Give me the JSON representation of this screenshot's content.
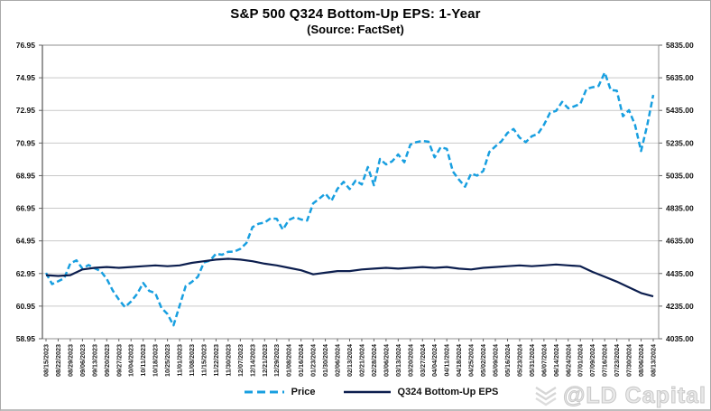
{
  "watermark": {
    "text": "@LD Capital"
  },
  "chart_data": {
    "type": "line",
    "title": "S&P 500 Q324 Bottom-Up EPS: 1-Year",
    "subtitle": "(Source: FactSet)",
    "grid": true,
    "legend_position": "bottom",
    "x_labels": [
      "08/15/2023",
      "08/22/2023",
      "08/29/2023",
      "09/06/2023",
      "09/13/2023",
      "09/20/2023",
      "09/27/2023",
      "10/04/2023",
      "10/11/2023",
      "10/18/2023",
      "10/25/2023",
      "11/01/2023",
      "11/08/2023",
      "11/15/2023",
      "11/22/2023",
      "11/30/2023",
      "12/07/2023",
      "12/14/2023",
      "12/21/2023",
      "12/29/2023",
      "01/08/2024",
      "01/16/2024",
      "01/23/2024",
      "01/30/2024",
      "02/06/2024",
      "02/13/2024",
      "02/21/2024",
      "02/28/2024",
      "03/06/2024",
      "03/13/2024",
      "03/20/2024",
      "03/27/2024",
      "04/04/2024",
      "04/11/2024",
      "04/18/2024",
      "04/25/2024",
      "05/02/2024",
      "05/09/2024",
      "05/16/2024",
      "05/23/2024",
      "05/31/2024",
      "06/07/2024",
      "06/14/2024",
      "06/24/2024",
      "07/01/2024",
      "07/09/2024",
      "07/16/2024",
      "07/23/2024",
      "07/30/2024",
      "08/06/2024",
      "08/13/2024"
    ],
    "axes": {
      "left": {
        "min": 58.95,
        "max": 76.95,
        "ticks": [
          "76.95",
          "74.95",
          "72.95",
          "70.95",
          "68.95",
          "66.95",
          "64.95",
          "62.95",
          "60.95",
          "58.95"
        ]
      },
      "right": {
        "min": 4035,
        "max": 5835,
        "ticks": [
          "5835.00",
          "5635.00",
          "5435.00",
          "5235.00",
          "5035.00",
          "4835.00",
          "4635.00",
          "4435.00",
          "4235.00",
          "4035.00"
        ]
      }
    },
    "series": [
      {
        "name": "Price",
        "axis": "right",
        "style": "dashed",
        "color": "#189FE0",
        "x_span": [
          0,
          50
        ],
        "values": [
          4438,
          4370,
          4387,
          4406,
          4497,
          4516,
          4465,
          4487,
          4467,
          4450,
          4402,
          4330,
          4275,
          4229,
          4263,
          4309,
          4377,
          4328,
          4315,
          4224,
          4187,
          4117,
          4238,
          4358,
          4383,
          4415,
          4503,
          4514,
          4556,
          4550,
          4568,
          4569,
          4586,
          4622,
          4719,
          4740,
          4747,
          4774,
          4770,
          4704,
          4764,
          4780,
          4766,
          4760,
          4865,
          4894,
          4925,
          4880,
          4954,
          4997,
          4953,
          5005,
          4981,
          5088,
          4976,
          5137,
          5104,
          5123,
          5165,
          5117,
          5225,
          5241,
          5248,
          5243,
          5147,
          5209,
          5199,
          5061,
          5011,
          4967,
          5048,
          5035,
          5064,
          5180,
          5214,
          5246,
          5297,
          5321,
          5268,
          5240,
          5277,
          5291,
          5347,
          5421,
          5432,
          5487,
          5448,
          5460,
          5475,
          5567,
          5577,
          5585,
          5667,
          5560,
          5556,
          5399,
          5436,
          5346,
          5186,
          5344,
          5530
        ]
      },
      {
        "name": "Q324 Bottom-Up EPS",
        "axis": "left",
        "style": "solid",
        "color": "#0C1E4E",
        "x_span": [
          0,
          50
        ],
        "values": [
          62.85,
          62.8,
          62.85,
          63.2,
          63.3,
          63.35,
          63.3,
          63.35,
          63.4,
          63.45,
          63.4,
          63.45,
          63.6,
          63.7,
          63.8,
          63.85,
          63.8,
          63.7,
          63.55,
          63.45,
          63.3,
          63.15,
          62.9,
          63.0,
          63.1,
          63.1,
          63.2,
          63.25,
          63.3,
          63.25,
          63.3,
          63.35,
          63.3,
          63.35,
          63.25,
          63.2,
          63.3,
          63.35,
          63.4,
          63.45,
          63.4,
          63.45,
          63.5,
          63.45,
          63.4,
          63.05,
          62.75,
          62.45,
          62.1,
          61.75,
          61.55
        ]
      }
    ]
  }
}
